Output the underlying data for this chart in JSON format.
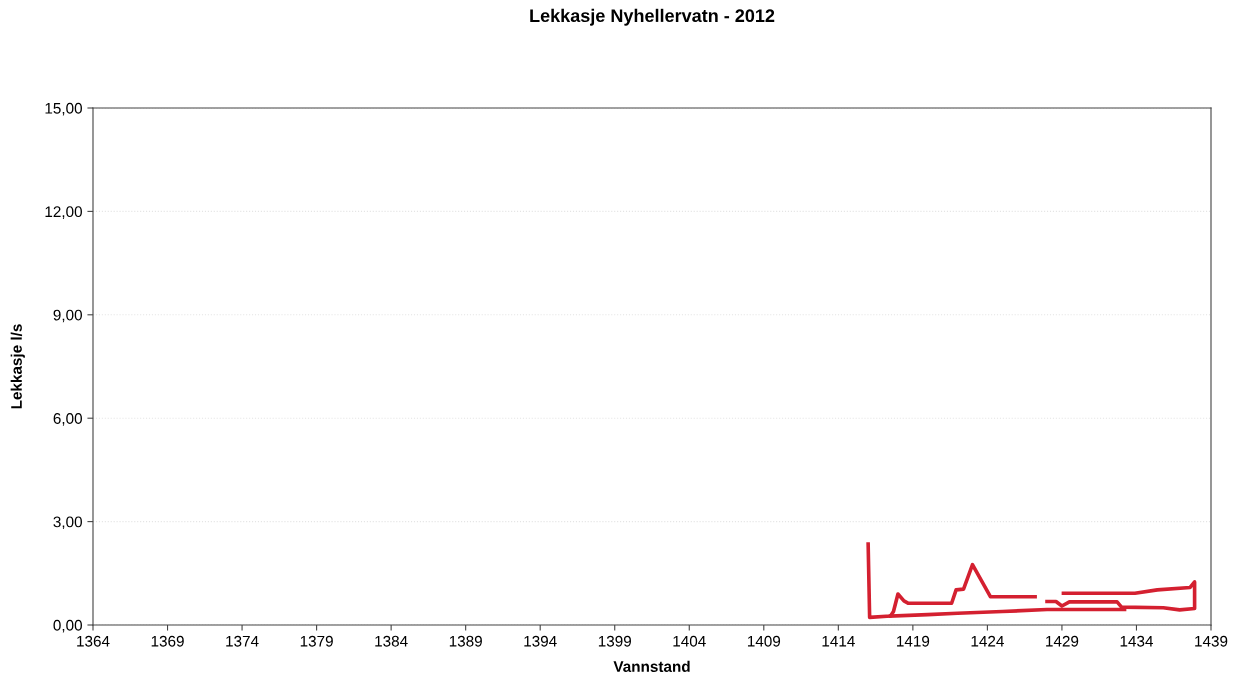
{
  "chart_data": {
    "type": "line",
    "title": "Lekkasje Nyhellervatn - 2012",
    "xlabel": "Vannstand",
    "ylabel": "Lekkasje l/s",
    "xlim": [
      1364,
      1439
    ],
    "xticks": [
      1364,
      1369,
      1374,
      1379,
      1384,
      1389,
      1394,
      1399,
      1404,
      1409,
      1414,
      1419,
      1424,
      1429,
      1434,
      1439
    ],
    "ylim": [
      0,
      15
    ],
    "yticks": [
      {
        "value": 0,
        "label": "0,00"
      },
      {
        "value": 3,
        "label": "3,00"
      },
      {
        "value": 6,
        "label": "6,00"
      },
      {
        "value": 9,
        "label": "9,00"
      },
      {
        "value": 12,
        "label": "12,00"
      },
      {
        "value": 15,
        "label": "15,00"
      }
    ],
    "grid": "y",
    "marker": "none",
    "line_style": "solid",
    "series": [
      {
        "color": "#d42030",
        "x": [
          1416.0,
          1416.1,
          1417.5,
          1417.7,
          1418.0,
          1418.4,
          1418.7,
          1421.6,
          1421.9,
          1422.4,
          1423.0,
          1424.2,
          1427.2,
          1427.5,
          1428.0,
          1428.6,
          1429.0,
          1429.5,
          1432.7,
          1433.0,
          1435.8,
          1436.9,
          1437.9,
          1437.9,
          1437.6,
          1435.4,
          1433.9,
          1429.1
        ],
        "values": [
          2.35,
          0.22,
          0.26,
          0.39,
          0.9,
          0.7,
          0.63,
          0.63,
          1.02,
          1.04,
          1.75,
          0.82,
          0.82,
          null,
          0.68,
          0.68,
          0.55,
          0.67,
          0.67,
          0.52,
          0.5,
          0.44,
          0.48,
          1.25,
          1.09,
          1.02,
          0.92,
          0.92
        ]
      },
      {
        "color": "#d42030",
        "x": [
          1417.5,
          1420.0,
          1422.0,
          1425.0,
          1428.0,
          1430.0,
          1433.2
        ],
        "values": [
          0.26,
          0.3,
          0.34,
          0.39,
          0.45,
          0.45,
          0.45
        ]
      }
    ]
  }
}
